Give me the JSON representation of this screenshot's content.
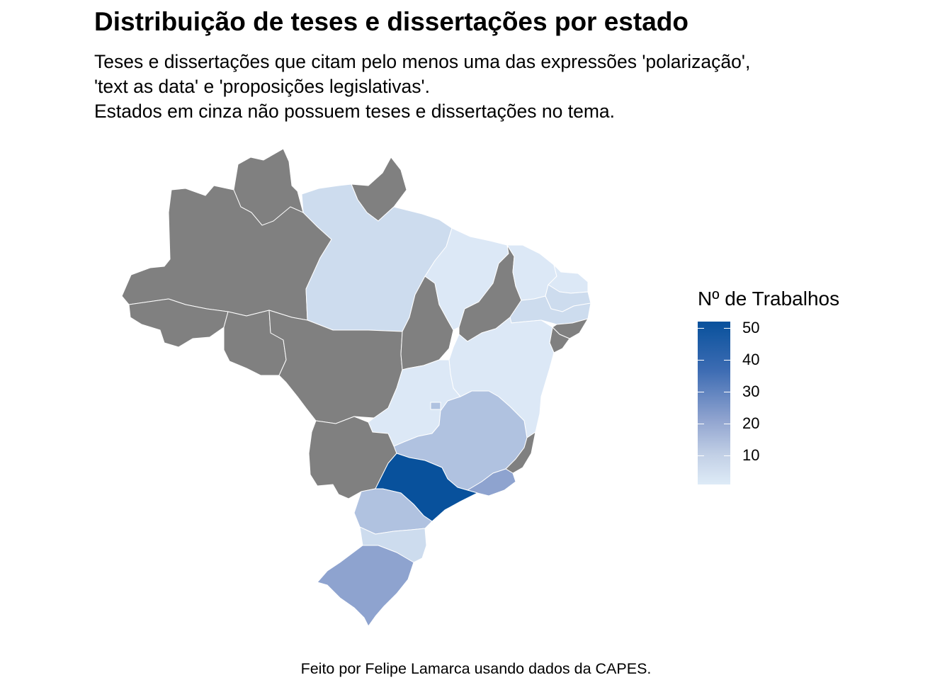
{
  "title": "Distribuição de teses e dissertações por estado",
  "subtitle": [
    "Teses e dissertações que citam pelo menos uma das expressões 'polarização',",
    "'text as data' e 'proposições legislativas'.",
    "Estados em cinza não possuem teses e dissertações no tema."
  ],
  "legend": {
    "title": "Nº de Trabalhos",
    "ticks": [
      "50",
      "40",
      "30",
      "20",
      "10"
    ],
    "range": [
      1,
      52
    ],
    "low_color": "#deebf7",
    "high_color": "#08519c",
    "missing_color": "#808080"
  },
  "caption": "Feito por Felipe Lamarca usando dados da CAPES.",
  "colors": {
    "gray": "#808080",
    "very_light": "#dce8f6",
    "light": "#cddcee",
    "mid_light": "#b0c2e0",
    "mid": "#8ea3cf",
    "dark": "#08519c",
    "border": "#ffffff"
  }
}
